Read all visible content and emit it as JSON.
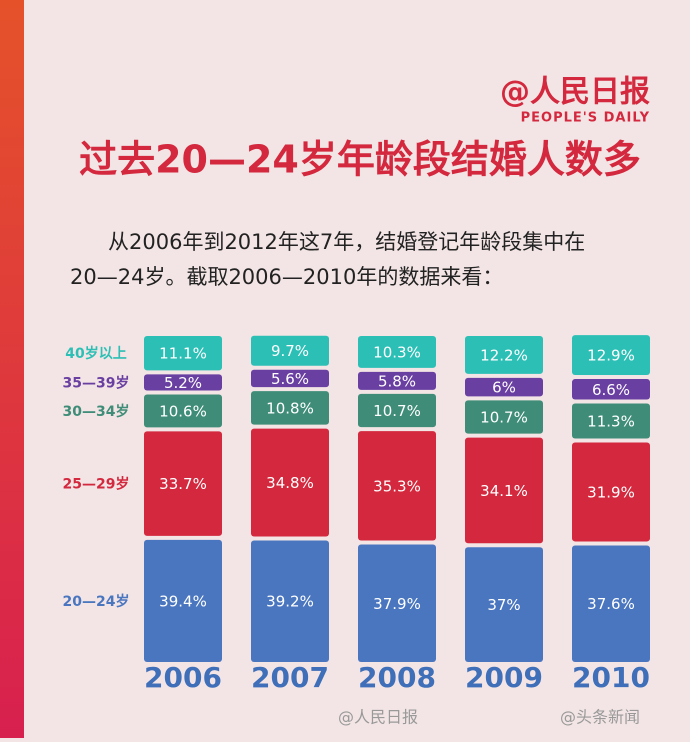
{
  "header": {
    "logo": "@人民日报",
    "logo_sub": "PEOPLE'S DAILY"
  },
  "chart_data": {
    "type": "bar",
    "stacked": true,
    "title": "过去20—24岁年龄段结婚人数多",
    "subtitle": [
      "从2006年到2012年这7年，结婚登记年龄段集中在",
      "20—24岁。截取2006—2010年的数据来看："
    ],
    "categories": [
      "2006",
      "2007",
      "2008",
      "2009",
      "2010"
    ],
    "series": [
      {
        "name": "20—24岁",
        "color": "#4a76c0",
        "values": [
          39.4,
          39.2,
          37.9,
          37,
          37.6
        ],
        "value_labels": [
          "39.4%",
          "39.2%",
          "37.9%",
          "37%",
          "37.6%"
        ]
      },
      {
        "name": "25—29岁",
        "color": "#d3283d",
        "values": [
          33.7,
          34.8,
          35.3,
          34.1,
          31.9
        ],
        "value_labels": [
          "33.7%",
          "34.8%",
          "35.3%",
          "34.1%",
          "31.9%"
        ]
      },
      {
        "name": "30—34岁",
        "color": "#3f8d78",
        "values": [
          10.6,
          10.8,
          10.7,
          10.7,
          11.3
        ],
        "value_labels": [
          "10.6%",
          "10.8%",
          "10.7%",
          "10.7%",
          "11.3%"
        ]
      },
      {
        "name": "35—39岁",
        "color": "#6a3fa2",
        "values": [
          5.2,
          5.6,
          5.8,
          6,
          6.6
        ],
        "value_labels": [
          "5.2%",
          "5.6%",
          "5.8%",
          "6%",
          "6.6%"
        ]
      },
      {
        "name": "40岁以上",
        "color": "#2cbfb5",
        "values": [
          11.1,
          9.7,
          10.3,
          12.2,
          12.9
        ],
        "value_labels": [
          "11.1%",
          "9.7%",
          "10.3%",
          "12.2%",
          "12.9%"
        ]
      }
    ]
  },
  "watermarks": [
    "@人民日报",
    "@头条新闻"
  ]
}
